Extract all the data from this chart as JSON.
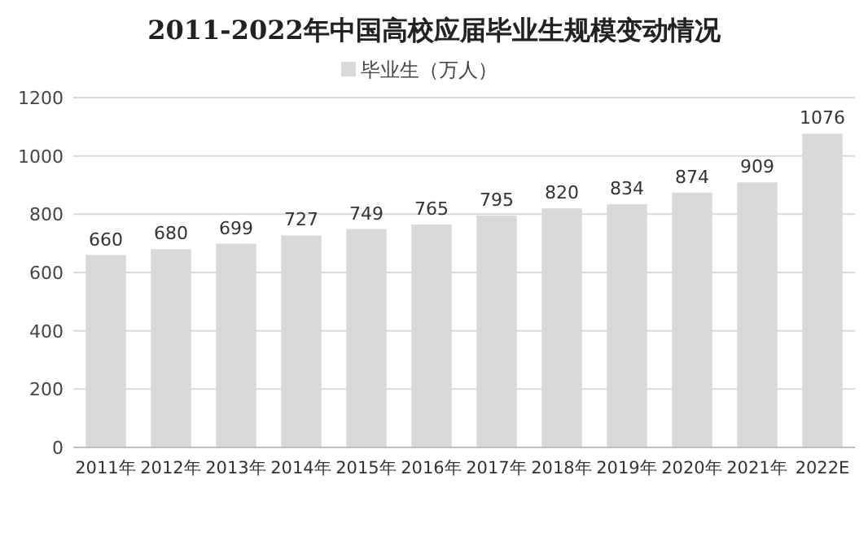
{
  "chart_data": {
    "type": "bar",
    "title": "2011-2022年中国高校应届毕业生规模变动情况",
    "categories": [
      "2011年",
      "2012年",
      "2013年",
      "2014年",
      "2015年",
      "2016年",
      "2017年",
      "2018年",
      "2019年",
      "2020年",
      "2021年",
      "2022E"
    ],
    "series": [
      {
        "name": "毕业生（万人）",
        "color": "#d9d9d9",
        "values": [
          660,
          680,
          699,
          727,
          749,
          765,
          795,
          820,
          834,
          874,
          909,
          1076
        ]
      }
    ],
    "ylim": [
      0,
      1200
    ],
    "yticks": [
      0,
      200,
      400,
      600,
      800,
      1000,
      1200
    ],
    "grid": "y",
    "legend": "top",
    "data_labels": true
  }
}
